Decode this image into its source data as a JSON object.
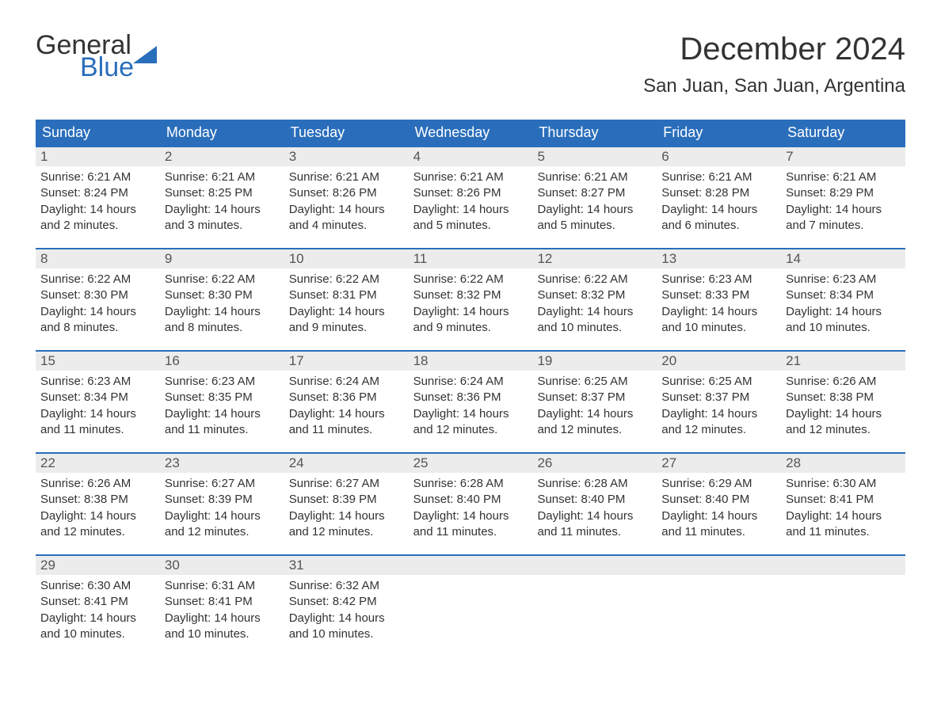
{
  "logo": {
    "text_top": "General",
    "text_bottom": "Blue",
    "accent_color": "#2a6ebb",
    "text_color": "#333333"
  },
  "title": "December 2024",
  "location": "San Juan, San Juan, Argentina",
  "colors": {
    "header_bg": "#2a6ebb",
    "header_text": "#ffffff",
    "daynum_bg": "#ececec",
    "daynum_text": "#555555",
    "body_text": "#333333",
    "week_border": "#2a6ebb",
    "page_bg": "#ffffff"
  },
  "fonts": {
    "title_size": 40,
    "location_size": 24,
    "dow_size": 18,
    "daynum_size": 17,
    "body_size": 15
  },
  "days_of_week": [
    "Sunday",
    "Monday",
    "Tuesday",
    "Wednesday",
    "Thursday",
    "Friday",
    "Saturday"
  ],
  "weeks": [
    [
      {
        "num": "1",
        "sunrise": "Sunrise: 6:21 AM",
        "sunset": "Sunset: 8:24 PM",
        "daylight": "Daylight: 14 hours and 2 minutes."
      },
      {
        "num": "2",
        "sunrise": "Sunrise: 6:21 AM",
        "sunset": "Sunset: 8:25 PM",
        "daylight": "Daylight: 14 hours and 3 minutes."
      },
      {
        "num": "3",
        "sunrise": "Sunrise: 6:21 AM",
        "sunset": "Sunset: 8:26 PM",
        "daylight": "Daylight: 14 hours and 4 minutes."
      },
      {
        "num": "4",
        "sunrise": "Sunrise: 6:21 AM",
        "sunset": "Sunset: 8:26 PM",
        "daylight": "Daylight: 14 hours and 5 minutes."
      },
      {
        "num": "5",
        "sunrise": "Sunrise: 6:21 AM",
        "sunset": "Sunset: 8:27 PM",
        "daylight": "Daylight: 14 hours and 5 minutes."
      },
      {
        "num": "6",
        "sunrise": "Sunrise: 6:21 AM",
        "sunset": "Sunset: 8:28 PM",
        "daylight": "Daylight: 14 hours and 6 minutes."
      },
      {
        "num": "7",
        "sunrise": "Sunrise: 6:21 AM",
        "sunset": "Sunset: 8:29 PM",
        "daylight": "Daylight: 14 hours and 7 minutes."
      }
    ],
    [
      {
        "num": "8",
        "sunrise": "Sunrise: 6:22 AM",
        "sunset": "Sunset: 8:30 PM",
        "daylight": "Daylight: 14 hours and 8 minutes."
      },
      {
        "num": "9",
        "sunrise": "Sunrise: 6:22 AM",
        "sunset": "Sunset: 8:30 PM",
        "daylight": "Daylight: 14 hours and 8 minutes."
      },
      {
        "num": "10",
        "sunrise": "Sunrise: 6:22 AM",
        "sunset": "Sunset: 8:31 PM",
        "daylight": "Daylight: 14 hours and 9 minutes."
      },
      {
        "num": "11",
        "sunrise": "Sunrise: 6:22 AM",
        "sunset": "Sunset: 8:32 PM",
        "daylight": "Daylight: 14 hours and 9 minutes."
      },
      {
        "num": "12",
        "sunrise": "Sunrise: 6:22 AM",
        "sunset": "Sunset: 8:32 PM",
        "daylight": "Daylight: 14 hours and 10 minutes."
      },
      {
        "num": "13",
        "sunrise": "Sunrise: 6:23 AM",
        "sunset": "Sunset: 8:33 PM",
        "daylight": "Daylight: 14 hours and 10 minutes."
      },
      {
        "num": "14",
        "sunrise": "Sunrise: 6:23 AM",
        "sunset": "Sunset: 8:34 PM",
        "daylight": "Daylight: 14 hours and 10 minutes."
      }
    ],
    [
      {
        "num": "15",
        "sunrise": "Sunrise: 6:23 AM",
        "sunset": "Sunset: 8:34 PM",
        "daylight": "Daylight: 14 hours and 11 minutes."
      },
      {
        "num": "16",
        "sunrise": "Sunrise: 6:23 AM",
        "sunset": "Sunset: 8:35 PM",
        "daylight": "Daylight: 14 hours and 11 minutes."
      },
      {
        "num": "17",
        "sunrise": "Sunrise: 6:24 AM",
        "sunset": "Sunset: 8:36 PM",
        "daylight": "Daylight: 14 hours and 11 minutes."
      },
      {
        "num": "18",
        "sunrise": "Sunrise: 6:24 AM",
        "sunset": "Sunset: 8:36 PM",
        "daylight": "Daylight: 14 hours and 12 minutes."
      },
      {
        "num": "19",
        "sunrise": "Sunrise: 6:25 AM",
        "sunset": "Sunset: 8:37 PM",
        "daylight": "Daylight: 14 hours and 12 minutes."
      },
      {
        "num": "20",
        "sunrise": "Sunrise: 6:25 AM",
        "sunset": "Sunset: 8:37 PM",
        "daylight": "Daylight: 14 hours and 12 minutes."
      },
      {
        "num": "21",
        "sunrise": "Sunrise: 6:26 AM",
        "sunset": "Sunset: 8:38 PM",
        "daylight": "Daylight: 14 hours and 12 minutes."
      }
    ],
    [
      {
        "num": "22",
        "sunrise": "Sunrise: 6:26 AM",
        "sunset": "Sunset: 8:38 PM",
        "daylight": "Daylight: 14 hours and 12 minutes."
      },
      {
        "num": "23",
        "sunrise": "Sunrise: 6:27 AM",
        "sunset": "Sunset: 8:39 PM",
        "daylight": "Daylight: 14 hours and 12 minutes."
      },
      {
        "num": "24",
        "sunrise": "Sunrise: 6:27 AM",
        "sunset": "Sunset: 8:39 PM",
        "daylight": "Daylight: 14 hours and 12 minutes."
      },
      {
        "num": "25",
        "sunrise": "Sunrise: 6:28 AM",
        "sunset": "Sunset: 8:40 PM",
        "daylight": "Daylight: 14 hours and 11 minutes."
      },
      {
        "num": "26",
        "sunrise": "Sunrise: 6:28 AM",
        "sunset": "Sunset: 8:40 PM",
        "daylight": "Daylight: 14 hours and 11 minutes."
      },
      {
        "num": "27",
        "sunrise": "Sunrise: 6:29 AM",
        "sunset": "Sunset: 8:40 PM",
        "daylight": "Daylight: 14 hours and 11 minutes."
      },
      {
        "num": "28",
        "sunrise": "Sunrise: 6:30 AM",
        "sunset": "Sunset: 8:41 PM",
        "daylight": "Daylight: 14 hours and 11 minutes."
      }
    ],
    [
      {
        "num": "29",
        "sunrise": "Sunrise: 6:30 AM",
        "sunset": "Sunset: 8:41 PM",
        "daylight": "Daylight: 14 hours and 10 minutes."
      },
      {
        "num": "30",
        "sunrise": "Sunrise: 6:31 AM",
        "sunset": "Sunset: 8:41 PM",
        "daylight": "Daylight: 14 hours and 10 minutes."
      },
      {
        "num": "31",
        "sunrise": "Sunrise: 6:32 AM",
        "sunset": "Sunset: 8:42 PM",
        "daylight": "Daylight: 14 hours and 10 minutes."
      },
      {
        "num": "",
        "sunrise": "",
        "sunset": "",
        "daylight": ""
      },
      {
        "num": "",
        "sunrise": "",
        "sunset": "",
        "daylight": ""
      },
      {
        "num": "",
        "sunrise": "",
        "sunset": "",
        "daylight": ""
      },
      {
        "num": "",
        "sunrise": "",
        "sunset": "",
        "daylight": ""
      }
    ]
  ]
}
